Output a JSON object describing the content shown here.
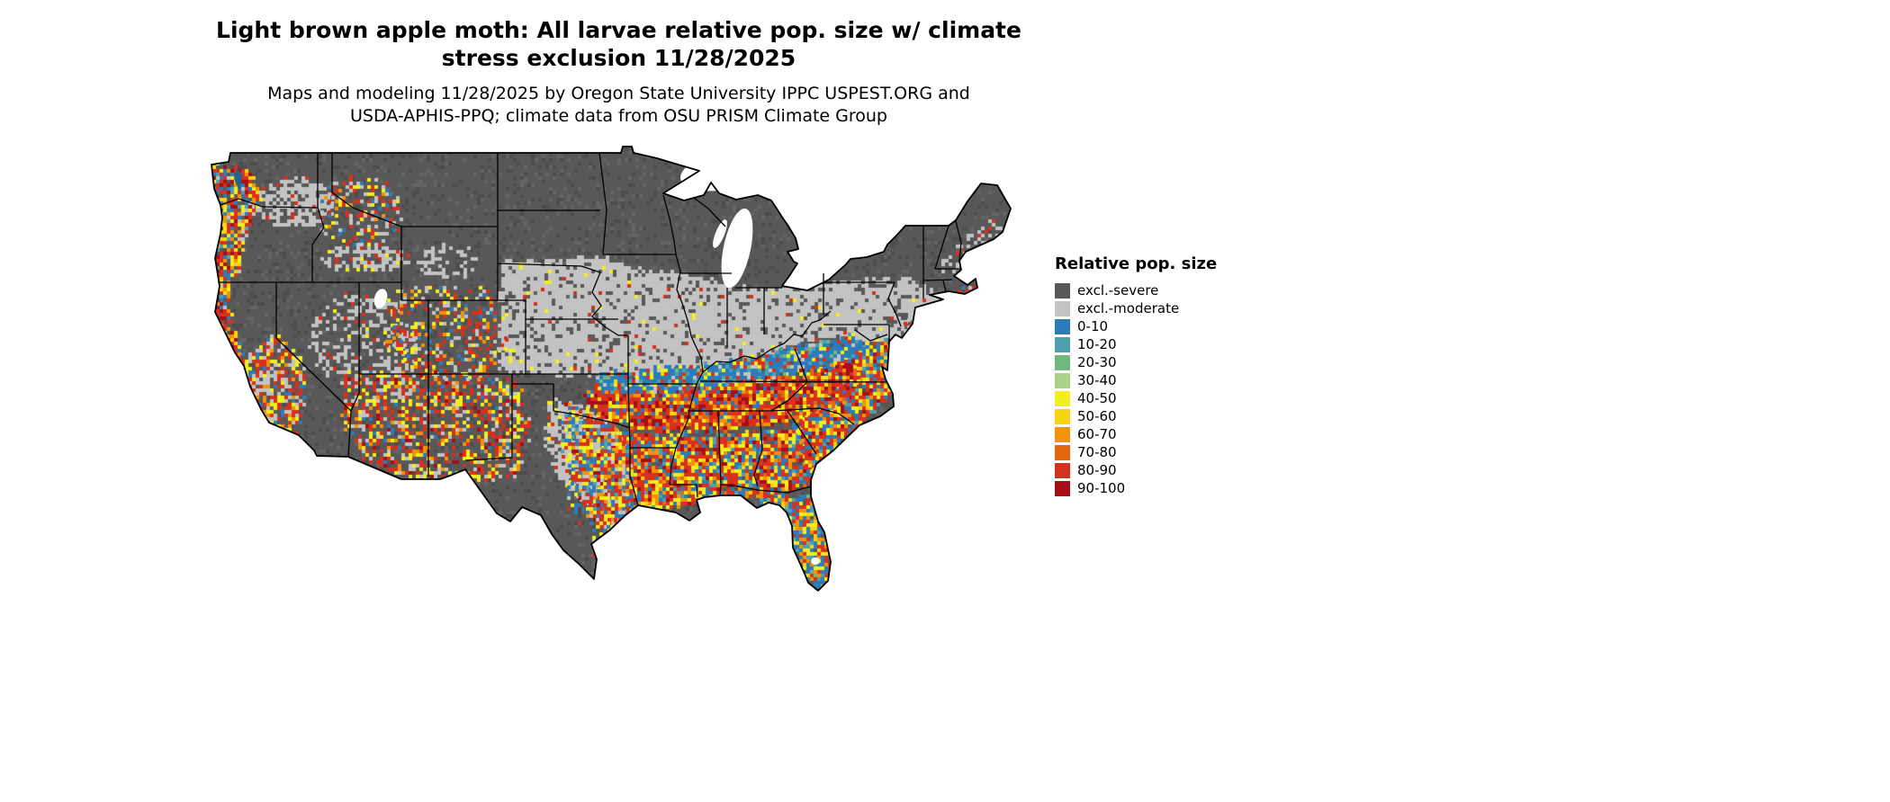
{
  "title": {
    "line1": "Light brown apple moth: All larvae relative pop. size w/ climate",
    "line2": "stress exclusion 11/28/2025"
  },
  "subtitle": {
    "line1": "Maps and modeling 11/28/2025 by Oregon State University IPPC USPEST.ORG and",
    "line2": "USDA-APHIS-PPQ; climate data from OSU PRISM Climate Group"
  },
  "legend": {
    "title": "Relative pop. size",
    "items": [
      {
        "label": "excl.-severe",
        "color": "#585858"
      },
      {
        "label": "excl.-moderate",
        "color": "#c3c3c3"
      },
      {
        "label": "0-10",
        "color": "#2b7cba"
      },
      {
        "label": "10-20",
        "color": "#4da0b0"
      },
      {
        "label": "20-30",
        "color": "#6fb97f"
      },
      {
        "label": "30-40",
        "color": "#a9d487"
      },
      {
        "label": "40-50",
        "color": "#f2ef1d"
      },
      {
        "label": "50-60",
        "color": "#f7d511"
      },
      {
        "label": "60-70",
        "color": "#f59208"
      },
      {
        "label": "70-80",
        "color": "#e4670f"
      },
      {
        "label": "80-90",
        "color": "#d7301f"
      },
      {
        "label": "90-100",
        "color": "#a50f15"
      }
    ]
  },
  "chart_data": {
    "type": "map",
    "map_region": "Contiguous United States with state boundaries",
    "variable": "Relative pop. size (Light brown apple moth, all larvae, with climate stress exclusion)",
    "date": "11/28/2025",
    "classes": [
      "excl.-severe",
      "excl.-moderate",
      "0-10",
      "10-20",
      "20-30",
      "30-40",
      "40-50",
      "50-60",
      "60-70",
      "70-80",
      "80-90",
      "90-100"
    ],
    "class_colors": [
      "#585858",
      "#c3c3c3",
      "#2b7cba",
      "#4da0b0",
      "#6fb97f",
      "#a9d487",
      "#f2ef1d",
      "#f7d511",
      "#f59208",
      "#e4670f",
      "#d7301f",
      "#a50f15"
    ],
    "legend_position": "right",
    "pattern_summary": "Northern tier and high-elevation west excluded (dark gray); central plains band excluded-moderate (light gray); high relative population (red/orange/yellow with blue fringes) across the Southeast, lower Midwest, east Texas, Florida and the Pacific coast."
  }
}
